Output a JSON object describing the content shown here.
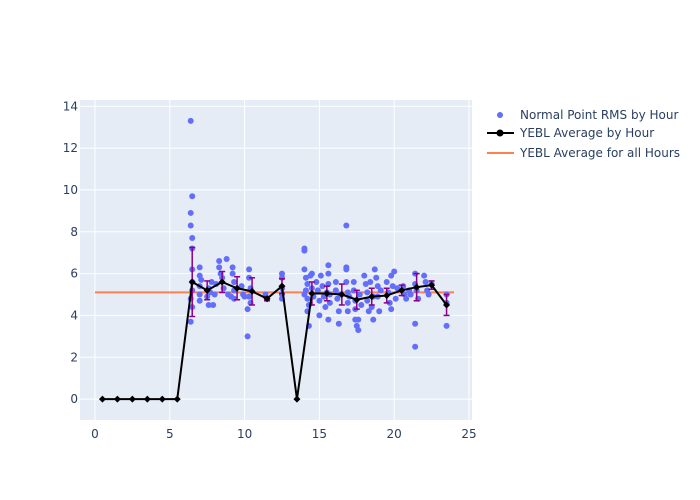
{
  "chart_data": {
    "type": "scatter",
    "title": "",
    "xlabel": "",
    "ylabel": "",
    "xlim": [
      -1,
      25.2
    ],
    "ylim": [
      -1,
      14.3
    ],
    "x_ticks": [
      0,
      5,
      10,
      15,
      20,
      25
    ],
    "y_ticks": [
      0,
      2,
      4,
      6,
      8,
      10,
      12,
      14
    ],
    "grid": true,
    "legend_position": "top-right",
    "colors": {
      "plot_bg": "#e5ecf6",
      "grid": "#ffffff",
      "scatter": "#636efa",
      "average": "#000000",
      "error_bar": "#8b008b",
      "overall": "#ff7f50"
    },
    "series": [
      {
        "name": " Normal Point RMS by Hour",
        "kind": "scatter",
        "points": [
          [
            6.4,
            13.3
          ],
          [
            6.5,
            9.7
          ],
          [
            6.4,
            8.9
          ],
          [
            6.4,
            8.3
          ],
          [
            6.5,
            7.7
          ],
          [
            6.5,
            7.2
          ],
          [
            6.5,
            6.2
          ],
          [
            6.5,
            5.6
          ],
          [
            6.5,
            5.2
          ],
          [
            6.4,
            4.8
          ],
          [
            6.5,
            4.4
          ],
          [
            6.4,
            3.7
          ],
          [
            7.0,
            6.3
          ],
          [
            7.0,
            5.9
          ],
          [
            7.0,
            5.4
          ],
          [
            7.0,
            5.0
          ],
          [
            7.0,
            4.7
          ],
          [
            7.1,
            5.7
          ],
          [
            7.5,
            4.9
          ],
          [
            7.6,
            4.5
          ],
          [
            7.6,
            5.3
          ],
          [
            7.7,
            5.1
          ],
          [
            7.8,
            5.6
          ],
          [
            7.9,
            4.5
          ],
          [
            8.0,
            5.0
          ],
          [
            8.1,
            5.5
          ],
          [
            8.3,
            6.6
          ],
          [
            8.3,
            6.3
          ],
          [
            8.4,
            6.0
          ],
          [
            8.5,
            5.8
          ],
          [
            8.6,
            5.3
          ],
          [
            8.8,
            6.7
          ],
          [
            8.9,
            5.0
          ],
          [
            9.2,
            6.3
          ],
          [
            9.2,
            6.0
          ],
          [
            9.3,
            5.6
          ],
          [
            9.3,
            5.2
          ],
          [
            9.3,
            4.8
          ],
          [
            9.1,
            4.9
          ],
          [
            9.8,
            5.4
          ],
          [
            9.9,
            5.0
          ],
          [
            10.0,
            4.9
          ],
          [
            10.2,
            4.3
          ],
          [
            10.2,
            3.0
          ],
          [
            10.3,
            6.2
          ],
          [
            10.3,
            5.8
          ],
          [
            10.4,
            5.3
          ],
          [
            10.4,
            4.6
          ],
          [
            10.3,
            4.9
          ],
          [
            11.5,
            4.8
          ],
          [
            11.4,
            5.0
          ],
          [
            12.5,
            6.0
          ],
          [
            12.5,
            5.8
          ],
          [
            12.5,
            5.3
          ],
          [
            12.5,
            5.0
          ],
          [
            12.5,
            4.8
          ],
          [
            14.0,
            7.2
          ],
          [
            14.0,
            7.1
          ],
          [
            14.0,
            6.2
          ],
          [
            14.1,
            5.8
          ],
          [
            14.2,
            5.5
          ],
          [
            14.1,
            5.2
          ],
          [
            14.0,
            5.0
          ],
          [
            14.2,
            4.8
          ],
          [
            14.3,
            4.5
          ],
          [
            14.2,
            4.2
          ],
          [
            14.3,
            3.5
          ],
          [
            14.4,
            5.9
          ],
          [
            14.5,
            6.0
          ],
          [
            14.5,
            5.3
          ],
          [
            14.6,
            4.9
          ],
          [
            14.8,
            5.6
          ],
          [
            14.9,
            5.2
          ],
          [
            15.0,
            4.7
          ],
          [
            15.0,
            4.0
          ],
          [
            15.1,
            5.9
          ],
          [
            15.2,
            5.4
          ],
          [
            15.3,
            4.9
          ],
          [
            15.4,
            4.4
          ],
          [
            15.5,
            5.1
          ],
          [
            15.6,
            6.4
          ],
          [
            15.6,
            6.0
          ],
          [
            15.6,
            5.5
          ],
          [
            15.7,
            5.0
          ],
          [
            15.7,
            4.6
          ],
          [
            15.6,
            3.8
          ],
          [
            16.1,
            5.6
          ],
          [
            16.1,
            5.2
          ],
          [
            16.2,
            4.8
          ],
          [
            16.3,
            4.2
          ],
          [
            16.3,
            3.6
          ],
          [
            16.4,
            5.0
          ],
          [
            16.8,
            8.3
          ],
          [
            16.8,
            6.3
          ],
          [
            16.8,
            6.2
          ],
          [
            16.8,
            5.6
          ],
          [
            16.9,
            5.1
          ],
          [
            16.9,
            4.6
          ],
          [
            16.9,
            4.2
          ],
          [
            17.0,
            4.9
          ],
          [
            17.3,
            5.6
          ],
          [
            17.3,
            5.2
          ],
          [
            17.4,
            4.7
          ],
          [
            17.4,
            4.3
          ],
          [
            17.4,
            3.8
          ],
          [
            17.5,
            3.5
          ],
          [
            17.6,
            3.3
          ],
          [
            17.6,
            3.8
          ],
          [
            17.7,
            5.0
          ],
          [
            17.8,
            4.5
          ],
          [
            18.0,
            5.9
          ],
          [
            18.1,
            5.5
          ],
          [
            18.2,
            5.1
          ],
          [
            18.2,
            4.7
          ],
          [
            18.3,
            4.2
          ],
          [
            18.4,
            5.6
          ],
          [
            18.5,
            4.4
          ],
          [
            18.6,
            3.8
          ],
          [
            18.6,
            4.9
          ],
          [
            18.7,
            6.2
          ],
          [
            18.8,
            5.8
          ],
          [
            18.9,
            5.4
          ],
          [
            18.9,
            4.9
          ],
          [
            19.0,
            4.2
          ],
          [
            19.1,
            5.2
          ],
          [
            19.5,
            5.6
          ],
          [
            19.6,
            5.1
          ],
          [
            19.7,
            4.6
          ],
          [
            19.8,
            4.3
          ],
          [
            19.8,
            5.9
          ],
          [
            19.9,
            5.4
          ],
          [
            20.0,
            6.1
          ],
          [
            20.1,
            4.8
          ],
          [
            20.2,
            5.3
          ],
          [
            20.6,
            5.4
          ],
          [
            20.7,
            5.0
          ],
          [
            20.8,
            4.8
          ],
          [
            21.0,
            5.2
          ],
          [
            21.1,
            5.0
          ],
          [
            21.4,
            6.0
          ],
          [
            21.4,
            5.5
          ],
          [
            21.4,
            3.6
          ],
          [
            21.4,
            2.5
          ],
          [
            21.5,
            5.2
          ],
          [
            21.6,
            4.8
          ],
          [
            22.0,
            5.9
          ],
          [
            22.1,
            5.6
          ],
          [
            22.2,
            5.2
          ],
          [
            22.3,
            5.0
          ],
          [
            22.5,
            5.5
          ],
          [
            23.5,
            5.0
          ],
          [
            23.5,
            4.6
          ],
          [
            23.5,
            3.5
          ]
        ]
      },
      {
        "name": "YEBL Average by Hour",
        "kind": "line-markers",
        "x": [
          0.5,
          1.5,
          2.5,
          3.5,
          4.5,
          5.5,
          6.5,
          7.5,
          8.5,
          9.5,
          10.5,
          11.5,
          12.5,
          13.5,
          14.5,
          15.5,
          16.5,
          17.5,
          18.5,
          19.5,
          20.5,
          21.5,
          22.5,
          23.5
        ],
        "y": [
          0,
          0,
          0,
          0,
          0,
          0,
          5.6,
          5.2,
          5.6,
          5.3,
          5.15,
          4.8,
          5.4,
          0,
          5.05,
          5.05,
          5.0,
          4.75,
          4.9,
          4.95,
          5.2,
          5.35,
          5.45,
          4.5
        ],
        "error": [
          0,
          0,
          0,
          0,
          0,
          0,
          1.65,
          0.45,
          0.5,
          0.55,
          0.65,
          0.1,
          0.35,
          0,
          0.55,
          0.35,
          0.5,
          0.45,
          0.4,
          0.35,
          0.25,
          0.65,
          0.2,
          0.5
        ]
      },
      {
        "name": "YEBL Average for all Hours",
        "kind": "hline",
        "value": 5.1,
        "x_range": [
          0,
          24
        ]
      }
    ]
  }
}
